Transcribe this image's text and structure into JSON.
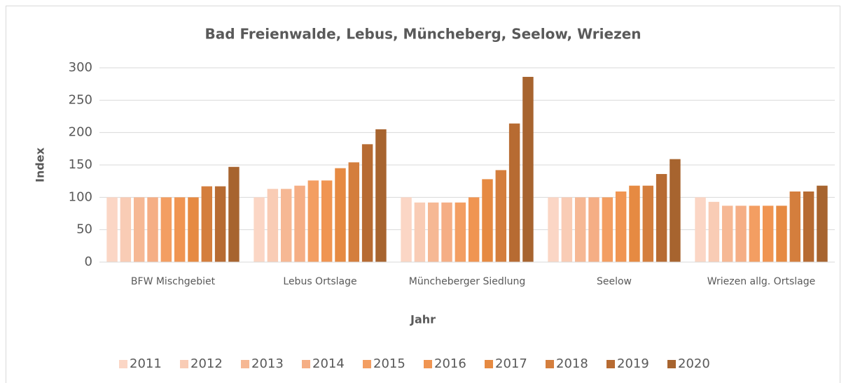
{
  "chart_data": {
    "type": "bar",
    "title": "Bad Freienwalde, Lebus, Müncheberg, Seelow, Wriezen",
    "xlabel": "Jahr",
    "ylabel": "Index",
    "categories": [
      "BFW Mischgebiet",
      "Lebus Ortslage",
      "Müncheberger Siedlung",
      "Seelow",
      "Wriezen allg. Ortslage"
    ],
    "series": [
      {
        "name": "2011",
        "color": "#fbd6c5",
        "values": [
          100,
          100,
          100,
          100,
          100
        ]
      },
      {
        "name": "2012",
        "color": "#f9ccb5",
        "values": [
          100,
          113,
          92,
          100,
          93
        ]
      },
      {
        "name": "2013",
        "color": "#f6b894",
        "values": [
          100,
          113,
          92,
          100,
          87
        ]
      },
      {
        "name": "2014",
        "color": "#f5ae85",
        "values": [
          100,
          118,
          92,
          100,
          87
        ]
      },
      {
        "name": "2015",
        "color": "#f39e62",
        "values": [
          100,
          126,
          92,
          100,
          87
        ]
      },
      {
        "name": "2016",
        "color": "#f09552",
        "values": [
          100,
          126,
          100,
          109,
          87
        ]
      },
      {
        "name": "2017",
        "color": "#e68a42",
        "values": [
          100,
          145,
          128,
          118,
          87
        ]
      },
      {
        "name": "2018",
        "color": "#d47e3d",
        "values": [
          117,
          154,
          142,
          118,
          109
        ]
      },
      {
        "name": "2019",
        "color": "#b76b32",
        "values": [
          117,
          182,
          214,
          136,
          109
        ]
      },
      {
        "name": "2020",
        "color": "#a7642f",
        "values": [
          147,
          205,
          286,
          159,
          118
        ]
      }
    ],
    "ylim": [
      0,
      300
    ],
    "yticks": [
      0,
      50,
      100,
      150,
      200,
      250,
      300
    ],
    "grid": true,
    "legend": "bottom"
  }
}
